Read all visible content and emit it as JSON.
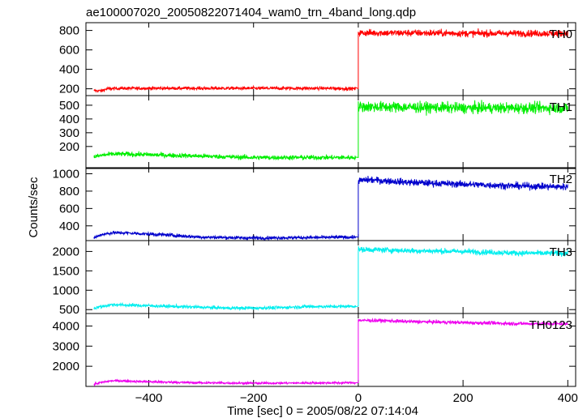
{
  "chart_data": {
    "type": "line",
    "title": "ae100007020_20050822071404_wam0_trn_4band_long.qdp",
    "xlabel": "Time [sec] 0 = 2005/08/22 07:14:04",
    "ylabel": "Counts/sec",
    "xlim": [
      -520,
      415
    ],
    "x_ticks": [
      -400,
      -200,
      0,
      200,
      400
    ],
    "x_tick_labels": [
      "−400",
      "−200",
      "0",
      "200",
      "400"
    ],
    "x_range_data": [
      -505,
      400
    ],
    "panels": [
      {
        "name": "TH0",
        "color": "#ff0000",
        "ylim": [
          130,
          880
        ],
        "yticks": [
          200,
          400,
          600,
          800
        ],
        "segments": [
          {
            "x": [
              -505,
              -490,
              -480,
              -450,
              -400,
              -300,
              -200,
              -100,
              -50,
              -5
            ],
            "y": [
              180,
              180,
              200,
              205,
              205,
              205,
              205,
              205,
              205,
              200
            ],
            "noise": 12
          },
          {
            "x": [
              0,
              50,
              100,
              200,
              300,
              400
            ],
            "y": [
              775,
              775,
              775,
              770,
              770,
              770
            ],
            "noise": 25
          }
        ]
      },
      {
        "name": "TH1",
        "color": "#00ee00",
        "ylim": [
          40,
          570
        ],
        "yticks": [
          200,
          300,
          400,
          500
        ],
        "segments": [
          {
            "x": [
              -505,
              -490,
              -470,
              -450,
              -400,
              -300,
              -200,
              -100,
              -5
            ],
            "y": [
              125,
              135,
              145,
              145,
              140,
              130,
              120,
              120,
              120
            ],
            "noise": 12
          },
          {
            "x": [
              0,
              100,
              200,
              300,
              400
            ],
            "y": [
              490,
              485,
              480,
              480,
              480
            ],
            "noise": 28
          }
        ]
      },
      {
        "name": "TH2",
        "color": "#0000cc",
        "ylim": [
          230,
          1070
        ],
        "yticks": [
          400,
          600,
          800,
          1000
        ],
        "segments": [
          {
            "x": [
              -505,
              -490,
              -470,
              -450,
              -400,
              -350,
              -300,
              -200,
              -100,
              -5
            ],
            "y": [
              260,
              300,
              320,
              320,
              305,
              290,
              270,
              260,
              265,
              270
            ],
            "noise": 14
          },
          {
            "x": [
              0,
              20,
              50,
              100,
              200,
              300,
              400
            ],
            "y": [
              920,
              930,
              920,
              900,
              880,
              860,
              850
            ],
            "noise": 28
          }
        ]
      },
      {
        "name": "TH3",
        "color": "#00eeee",
        "ylim": [
          400,
          2280
        ],
        "yticks": [
          500,
          1000,
          1500,
          2000
        ],
        "segments": [
          {
            "x": [
              -505,
              -490,
              -470,
              -450,
              -400,
              -300,
              -250,
              -200,
              -150,
              -100,
              -50,
              -5
            ],
            "y": [
              540,
              580,
              630,
              620,
              600,
              560,
              540,
              540,
              550,
              580,
              580,
              590
            ],
            "noise": 30
          },
          {
            "x": [
              0,
              50,
              100,
              200,
              300,
              400
            ],
            "y": [
              2050,
              2040,
              2020,
              2000,
              1960,
              1950
            ],
            "noise": 50
          }
        ]
      },
      {
        "name": "TH0123",
        "color": "#ee00ee",
        "ylim": [
          1000,
          4620
        ],
        "yticks": [
          2000,
          3000,
          4000
        ],
        "segments": [
          {
            "x": [
              -505,
              -490,
              -470,
              -450,
              -400,
              -300,
              -200,
              -100,
              -5
            ],
            "y": [
              1110,
              1200,
              1280,
              1270,
              1230,
              1180,
              1160,
              1170,
              1180
            ],
            "noise": 40
          },
          {
            "x": [
              0,
              50,
              100,
              200,
              300,
              400
            ],
            "y": [
              4280,
              4260,
              4220,
              4170,
              4120,
              4100
            ],
            "noise": 60
          }
        ]
      }
    ]
  }
}
